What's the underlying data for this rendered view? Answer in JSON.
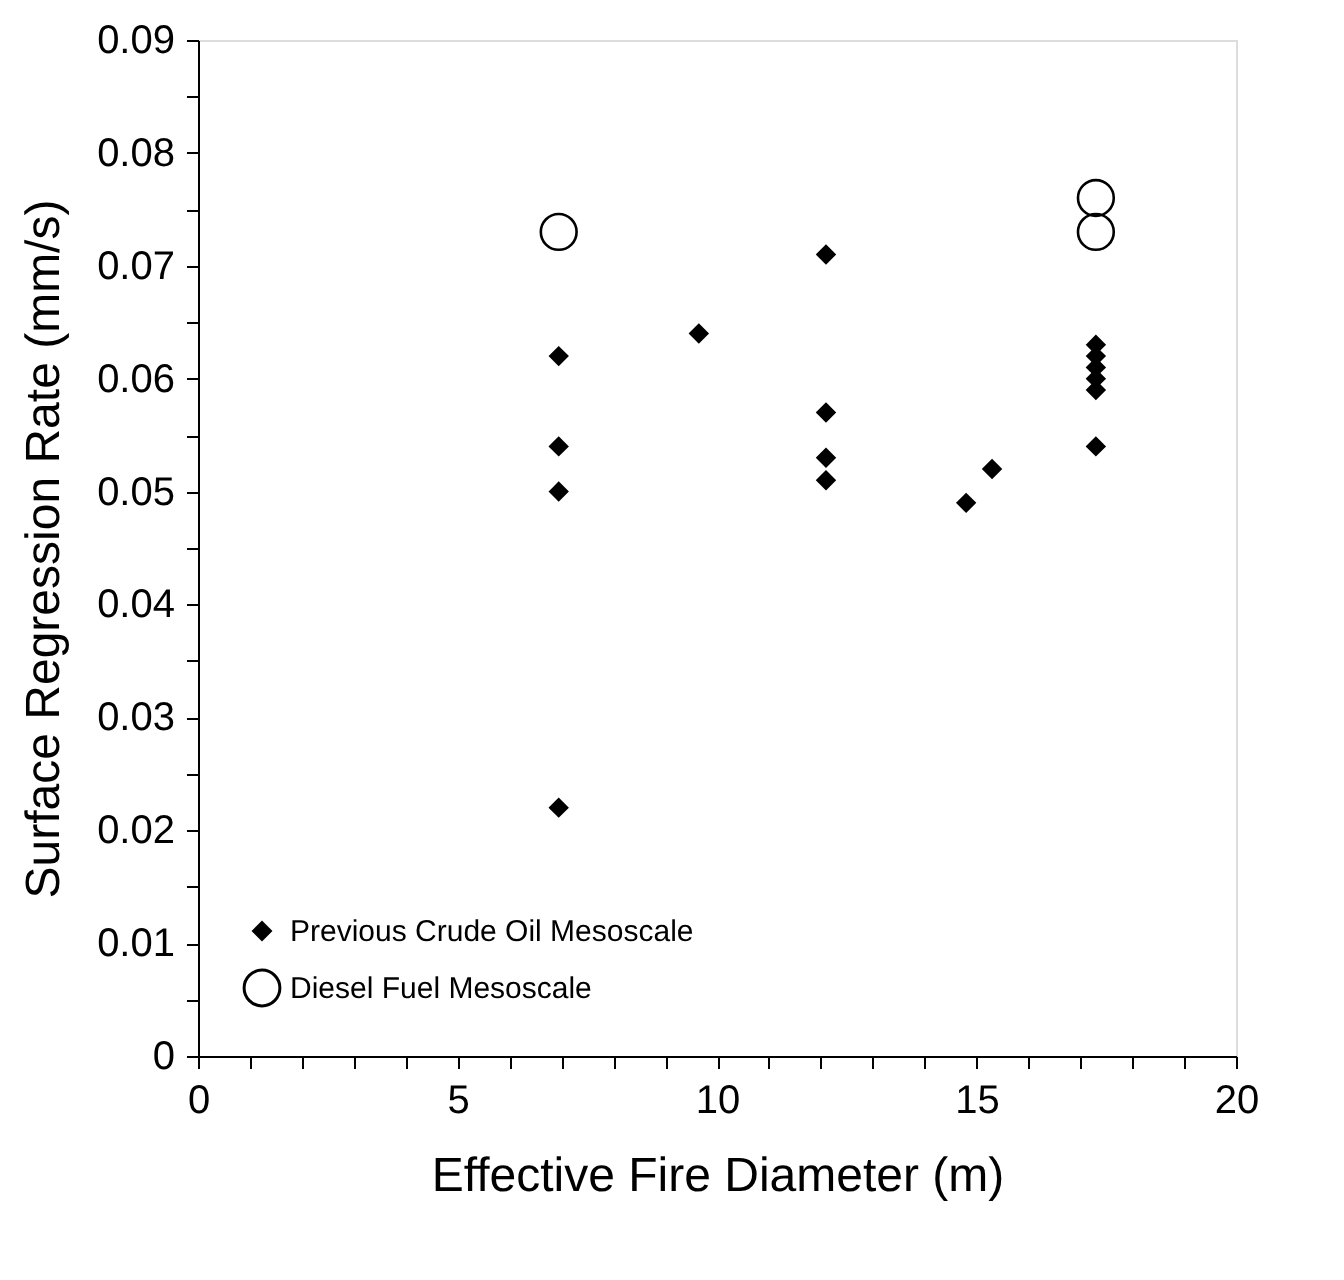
{
  "chart_data": {
    "type": "scatter",
    "xlabel": "Effective Fire Diameter (m)",
    "ylabel": "Surface Regression Rate (mm/s)",
    "xlim": [
      0,
      20
    ],
    "ylim": [
      0,
      0.09
    ],
    "xticks": [
      0,
      {
        "value": 1,
        "label": null
      },
      {
        "value": 2,
        "label": null
      },
      {
        "value": 3,
        "label": null
      },
      {
        "value": 4,
        "label": null
      },
      5,
      {
        "value": 6,
        "label": null
      },
      {
        "value": 7,
        "label": null
      },
      {
        "value": 8,
        "label": null
      },
      {
        "value": 9,
        "label": null
      },
      10,
      {
        "value": 11,
        "label": null
      },
      {
        "value": 12,
        "label": null
      },
      {
        "value": 13,
        "label": null
      },
      {
        "value": 14,
        "label": null
      },
      15,
      {
        "value": 16,
        "label": null
      },
      {
        "value": 17,
        "label": null
      },
      {
        "value": 18,
        "label": null
      },
      {
        "value": 19,
        "label": null
      },
      20
    ],
    "yticks": [
      0,
      {
        "value": 0.005,
        "label": null
      },
      0.01,
      {
        "value": 0.015,
        "label": null
      },
      0.02,
      {
        "value": 0.025,
        "label": null
      },
      0.03,
      {
        "value": 0.035,
        "label": null
      },
      0.04,
      {
        "value": 0.045,
        "label": null
      },
      0.05,
      {
        "value": 0.055,
        "label": null
      },
      0.06,
      {
        "value": 0.065,
        "label": null
      },
      0.07,
      {
        "value": 0.075,
        "label": null
      },
      0.08,
      {
        "value": 0.085,
        "label": null
      },
      0.09
    ],
    "grid": false,
    "legend": "bottom left",
    "series": [
      {
        "name": "Previous Crude Oil Mesoscale",
        "color": "#000000",
        "marker": "diamond",
        "x": [
          6.95,
          6.95,
          6.95,
          6.95,
          9.65,
          12.1,
          12.1,
          12.1,
          12.1,
          14.8,
          15.3,
          17.3,
          17.3,
          17.3,
          17.3,
          17.3,
          17.3
        ],
        "values": [
          0.062,
          0.054,
          0.05,
          0.022,
          0.064,
          0.071,
          0.057,
          0.053,
          0.051,
          0.049,
          0.052,
          0.063,
          0.062,
          0.061,
          0.06,
          0.059,
          0.054
        ]
      },
      {
        "name": "Diesel Fuel Mesoscale",
        "color": "#000000",
        "marker": "circle",
        "x": [
          6.95,
          17.3,
          17.3
        ],
        "values": [
          0.073,
          0.076,
          0.073
        ]
      }
    ]
  }
}
